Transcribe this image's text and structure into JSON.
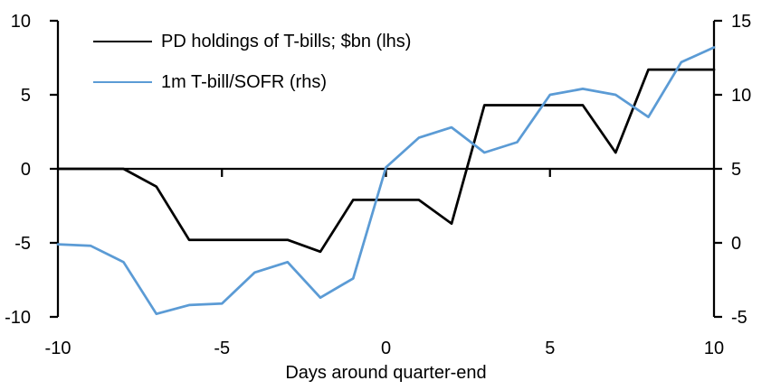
{
  "chart_data": {
    "type": "line",
    "x": [
      -10,
      -9,
      -8,
      -7,
      -6,
      -5,
      -4,
      -3,
      -2,
      -1,
      0,
      1,
      2,
      3,
      4,
      5,
      6,
      7,
      8,
      9,
      10
    ],
    "xlabel": "Days around quarter-end",
    "xlim": [
      -10,
      10
    ],
    "x_ticks": [
      -10,
      -5,
      0,
      5,
      10
    ],
    "left_axis": {
      "lim": [
        -10,
        10
      ],
      "ticks": [
        10,
        5,
        0,
        -5,
        -10
      ]
    },
    "right_axis": {
      "lim": [
        -5,
        15
      ],
      "ticks": [
        15,
        10,
        5,
        0,
        -5
      ]
    },
    "grid": false,
    "legend_position": "top-left",
    "axis_color": "#000000",
    "series": [
      {
        "name": "PD holdings of T-bills; $bn (lhs)",
        "axis": "left",
        "color": "#000000",
        "values": [
          0,
          0,
          0,
          -1.2,
          -4.8,
          -4.8,
          -4.8,
          -4.8,
          -5.6,
          -2.1,
          -2.1,
          -2.1,
          -3.7,
          4.3,
          4.3,
          4.3,
          4.3,
          1.1,
          6.7,
          6.7,
          6.7
        ]
      },
      {
        "name": "1m T-bill/SOFR (rhs)",
        "axis": "right",
        "color": "#5B9BD5",
        "values": [
          -0.1,
          -0.2,
          -1.3,
          -4.8,
          -4.2,
          -4.1,
          -2.0,
          -1.3,
          -3.7,
          -2.4,
          5.1,
          7.1,
          7.8,
          6.1,
          6.8,
          10.0,
          10.4,
          10.0,
          8.5,
          12.2,
          13.2
        ]
      }
    ]
  }
}
